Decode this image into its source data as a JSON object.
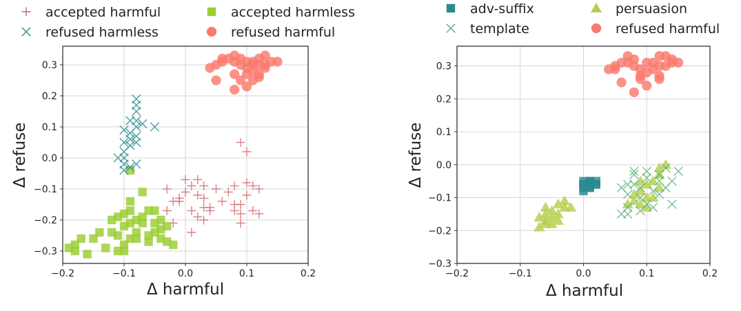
{
  "chart_data": [
    {
      "type": "scatter",
      "xlabel": "Δ harmful",
      "ylabel": "Δ refuse",
      "xlim": [
        -0.2,
        0.2
      ],
      "ylim": [
        -0.34,
        0.36
      ],
      "xticks": [
        "−0.2",
        "−0.1",
        "0.0",
        "0.1",
        "0.2"
      ],
      "xtick_values": [
        -0.2,
        -0.1,
        0.0,
        0.1,
        0.2
      ],
      "yticks": [
        "−0.3",
        "−0.2",
        "−0.1",
        "0.0",
        "0.1",
        "0.2",
        "0.3"
      ],
      "ytick_values": [
        -0.3,
        -0.2,
        -0.1,
        0.0,
        0.1,
        0.2,
        0.3
      ],
      "grid": true,
      "legend_position": "top, outside",
      "series": [
        {
          "name": "accepted harmful",
          "marker": "plus",
          "color": "#d1666b",
          "points": [
            [
              0.0,
              -0.07
            ],
            [
              0.01,
              -0.09
            ],
            [
              0.02,
              -0.12
            ],
            [
              0.0,
              -0.11
            ],
            [
              -0.01,
              -0.13
            ],
            [
              -0.02,
              -0.14
            ],
            [
              0.01,
              -0.17
            ],
            [
              -0.03,
              -0.17
            ],
            [
              0.02,
              -0.19
            ],
            [
              0.01,
              -0.24
            ],
            [
              -0.02,
              -0.21
            ],
            [
              0.03,
              -0.2
            ],
            [
              0.03,
              -0.13
            ],
            [
              0.04,
              -0.16
            ],
            [
              0.03,
              -0.16
            ],
            [
              0.03,
              -0.09
            ],
            [
              0.04,
              -0.17
            ],
            [
              0.06,
              -0.14
            ],
            [
              0.09,
              0.05
            ],
            [
              0.1,
              0.02
            ],
            [
              0.08,
              -0.09
            ],
            [
              0.1,
              -0.08
            ],
            [
              0.11,
              -0.09
            ],
            [
              0.12,
              -0.1
            ],
            [
              0.08,
              -0.15
            ],
            [
              0.09,
              -0.15
            ],
            [
              0.08,
              -0.17
            ],
            [
              0.09,
              -0.21
            ],
            [
              0.11,
              -0.17
            ],
            [
              0.12,
              -0.18
            ],
            [
              0.1,
              -0.12
            ],
            [
              0.09,
              -0.18
            ],
            [
              0.07,
              -0.11
            ],
            [
              0.05,
              -0.1
            ],
            [
              0.02,
              -0.07
            ],
            [
              -0.03,
              -0.1
            ],
            [
              -0.01,
              -0.14
            ]
          ]
        },
        {
          "name": "accepted harmless",
          "marker": "square",
          "color": "#9acd32",
          "points": [
            [
              -0.09,
              -0.04
            ],
            [
              -0.07,
              -0.11
            ],
            [
              -0.09,
              -0.14
            ],
            [
              -0.06,
              -0.17
            ],
            [
              -0.09,
              -0.17
            ],
            [
              -0.1,
              -0.18
            ],
            [
              -0.12,
              -0.2
            ],
            [
              -0.1,
              -0.22
            ],
            [
              -0.08,
              -0.2
            ],
            [
              -0.07,
              -0.21
            ],
            [
              -0.05,
              -0.17
            ],
            [
              -0.05,
              -0.21
            ],
            [
              -0.04,
              -0.23
            ],
            [
              -0.03,
              -0.22
            ],
            [
              -0.12,
              -0.24
            ],
            [
              -0.11,
              -0.25
            ],
            [
              -0.09,
              -0.26
            ],
            [
              -0.08,
              -0.26
            ],
            [
              -0.06,
              -0.25
            ],
            [
              -0.06,
              -0.27
            ],
            [
              -0.04,
              -0.26
            ],
            [
              -0.03,
              -0.27
            ],
            [
              -0.02,
              -0.28
            ],
            [
              -0.1,
              -0.28
            ],
            [
              -0.11,
              -0.3
            ],
            [
              -0.13,
              -0.29
            ],
            [
              -0.15,
              -0.26
            ],
            [
              -0.14,
              -0.24
            ],
            [
              -0.17,
              -0.26
            ],
            [
              -0.18,
              -0.28
            ],
            [
              -0.18,
              -0.3
            ],
            [
              -0.16,
              -0.31
            ],
            [
              -0.19,
              -0.29
            ],
            [
              -0.1,
              -0.3
            ],
            [
              -0.08,
              -0.24
            ],
            [
              -0.09,
              -0.21
            ],
            [
              -0.11,
              -0.19
            ],
            [
              -0.07,
              -0.19
            ],
            [
              -0.05,
              -0.24
            ],
            [
              -0.04,
              -0.2
            ]
          ]
        },
        {
          "name": "refused harmless",
          "marker": "x",
          "color": "#2a8a8f",
          "points": [
            [
              -0.09,
              0.06
            ],
            [
              -0.09,
              0.08
            ],
            [
              -0.08,
              0.1
            ],
            [
              -0.08,
              0.12
            ],
            [
              -0.07,
              0.11
            ],
            [
              -0.08,
              0.15
            ],
            [
              -0.08,
              0.19
            ],
            [
              -0.08,
              0.17
            ],
            [
              -0.09,
              0.12
            ],
            [
              -0.1,
              0.09
            ],
            [
              -0.1,
              0.05
            ],
            [
              -0.1,
              0.02
            ],
            [
              -0.1,
              0.0
            ],
            [
              -0.11,
              0.0
            ],
            [
              -0.1,
              -0.02
            ],
            [
              -0.1,
              -0.04
            ],
            [
              -0.09,
              -0.03
            ],
            [
              -0.08,
              -0.02
            ],
            [
              -0.08,
              0.05
            ],
            [
              -0.05,
              0.1
            ],
            [
              -0.09,
              0.04
            ],
            [
              -0.08,
              0.07
            ]
          ]
        },
        {
          "name": "refused harmful",
          "marker": "circle",
          "color": "#fa7a6e",
          "points": [
            [
              0.04,
              0.29
            ],
            [
              0.05,
              0.3
            ],
            [
              0.06,
              0.31
            ],
            [
              0.06,
              0.32
            ],
            [
              0.07,
              0.32
            ],
            [
              0.08,
              0.33
            ],
            [
              0.08,
              0.31
            ],
            [
              0.09,
              0.3
            ],
            [
              0.1,
              0.29
            ],
            [
              0.1,
              0.31
            ],
            [
              0.11,
              0.31
            ],
            [
              0.12,
              0.32
            ],
            [
              0.13,
              0.33
            ],
            [
              0.14,
              0.31
            ],
            [
              0.15,
              0.31
            ],
            [
              0.12,
              0.3
            ],
            [
              0.11,
              0.28
            ],
            [
              0.1,
              0.27
            ],
            [
              0.09,
              0.25
            ],
            [
              0.08,
              0.27
            ],
            [
              0.12,
              0.27
            ],
            [
              0.12,
              0.26
            ],
            [
              0.13,
              0.29
            ],
            [
              0.1,
              0.23
            ],
            [
              0.08,
              0.22
            ],
            [
              0.05,
              0.25
            ],
            [
              0.09,
              0.32
            ],
            [
              0.11,
              0.3
            ],
            [
              0.13,
              0.3
            ],
            [
              0.11,
              0.25
            ]
          ]
        }
      ]
    },
    {
      "type": "scatter",
      "xlabel": "Δ harmful",
      "ylabel": "Δ refuse",
      "xlim": [
        -0.2,
        0.2
      ],
      "ylim": [
        -0.3,
        0.36
      ],
      "xticks": [
        "−0.2",
        "−0.1",
        "0.0",
        "0.1",
        "0.2"
      ],
      "xtick_values": [
        -0.2,
        -0.1,
        0.0,
        0.1,
        0.2
      ],
      "yticks": [
        "−0.3",
        "−0.2",
        "−0.1",
        "0.0",
        "0.1",
        "0.2",
        "0.3"
      ],
      "ytick_values": [
        -0.3,
        -0.2,
        -0.1,
        0.0,
        0.1,
        0.2,
        0.3
      ],
      "grid": true,
      "legend_position": "top, outside",
      "series": [
        {
          "name": "adv-suffix",
          "marker": "square",
          "color": "#2a8a8f",
          "points": [
            [
              0.0,
              -0.06
            ],
            [
              0.0,
              -0.07
            ],
            [
              0.01,
              -0.06
            ],
            [
              0.01,
              -0.05
            ],
            [
              0.01,
              -0.07
            ],
            [
              0.02,
              -0.06
            ],
            [
              0.02,
              -0.05
            ],
            [
              0.01,
              -0.05
            ],
            [
              0.0,
              -0.05
            ],
            [
              0.0,
              -0.08
            ],
            [
              0.01,
              -0.07
            ],
            [
              0.02,
              -0.06
            ],
            [
              0.01,
              -0.06
            ],
            [
              0.0,
              -0.06
            ]
          ]
        },
        {
          "name": "persuasion",
          "marker": "triangle",
          "color": "#b5cf4f",
          "points": [
            [
              -0.07,
              -0.19
            ],
            [
              -0.06,
              -0.17
            ],
            [
              -0.06,
              -0.15
            ],
            [
              -0.05,
              -0.14
            ],
            [
              -0.05,
              -0.16
            ],
            [
              -0.04,
              -0.12
            ],
            [
              -0.04,
              -0.15
            ],
            [
              -0.03,
              -0.13
            ],
            [
              -0.03,
              -0.11
            ],
            [
              -0.02,
              -0.13
            ],
            [
              -0.06,
              -0.18
            ],
            [
              -0.05,
              -0.18
            ],
            [
              -0.07,
              -0.16
            ],
            [
              -0.04,
              -0.17
            ],
            [
              -0.06,
              -0.13
            ],
            [
              0.07,
              -0.12
            ],
            [
              0.08,
              -0.09
            ],
            [
              0.09,
              -0.08
            ],
            [
              0.09,
              -0.12
            ],
            [
              0.1,
              -0.1
            ],
            [
              0.1,
              -0.06
            ],
            [
              0.11,
              -0.05
            ],
            [
              0.12,
              -0.03
            ],
            [
              0.12,
              -0.01
            ],
            [
              0.13,
              0.0
            ],
            [
              0.1,
              -0.13
            ],
            [
              0.08,
              -0.11
            ],
            [
              0.12,
              -0.07
            ],
            [
              0.11,
              -0.1
            ],
            [
              0.09,
              -0.05
            ]
          ]
        },
        {
          "name": "template",
          "marker": "x",
          "color": "#5fb07a",
          "points": [
            [
              0.06,
              -0.15
            ],
            [
              0.07,
              -0.13
            ],
            [
              0.07,
              -0.09
            ],
            [
              0.08,
              -0.06
            ],
            [
              0.07,
              -0.06
            ],
            [
              0.08,
              -0.03
            ],
            [
              0.09,
              -0.07
            ],
            [
              0.1,
              -0.02
            ],
            [
              0.1,
              -0.12
            ],
            [
              0.11,
              -0.08
            ],
            [
              0.12,
              -0.05
            ],
            [
              0.12,
              -0.03
            ],
            [
              0.13,
              -0.07
            ],
            [
              0.14,
              -0.05
            ],
            [
              0.14,
              -0.12
            ],
            [
              0.13,
              -0.01
            ],
            [
              0.15,
              -0.02
            ],
            [
              0.11,
              -0.13
            ],
            [
              0.09,
              -0.1
            ],
            [
              0.08,
              -0.02
            ],
            [
              0.06,
              -0.07
            ],
            [
              0.07,
              -0.15
            ],
            [
              0.1,
              -0.04
            ],
            [
              0.12,
              -0.09
            ],
            [
              0.09,
              -0.14
            ]
          ]
        },
        {
          "name": "refused harmful",
          "marker": "circle",
          "color": "#fa7a6e",
          "points": [
            [
              0.04,
              0.29
            ],
            [
              0.05,
              0.3
            ],
            [
              0.06,
              0.31
            ],
            [
              0.07,
              0.33
            ],
            [
              0.08,
              0.32
            ],
            [
              0.08,
              0.3
            ],
            [
              0.09,
              0.29
            ],
            [
              0.09,
              0.27
            ],
            [
              0.1,
              0.31
            ],
            [
              0.11,
              0.31
            ],
            [
              0.12,
              0.3
            ],
            [
              0.12,
              0.33
            ],
            [
              0.13,
              0.33
            ],
            [
              0.14,
              0.31
            ],
            [
              0.15,
              0.31
            ],
            [
              0.12,
              0.27
            ],
            [
              0.12,
              0.26
            ],
            [
              0.1,
              0.24
            ],
            [
              0.08,
              0.22
            ],
            [
              0.06,
              0.25
            ],
            [
              0.09,
              0.26
            ],
            [
              0.11,
              0.29
            ],
            [
              0.13,
              0.3
            ],
            [
              0.14,
              0.32
            ],
            [
              0.1,
              0.28
            ],
            [
              0.07,
              0.31
            ],
            [
              0.05,
              0.29
            ]
          ]
        }
      ]
    }
  ]
}
